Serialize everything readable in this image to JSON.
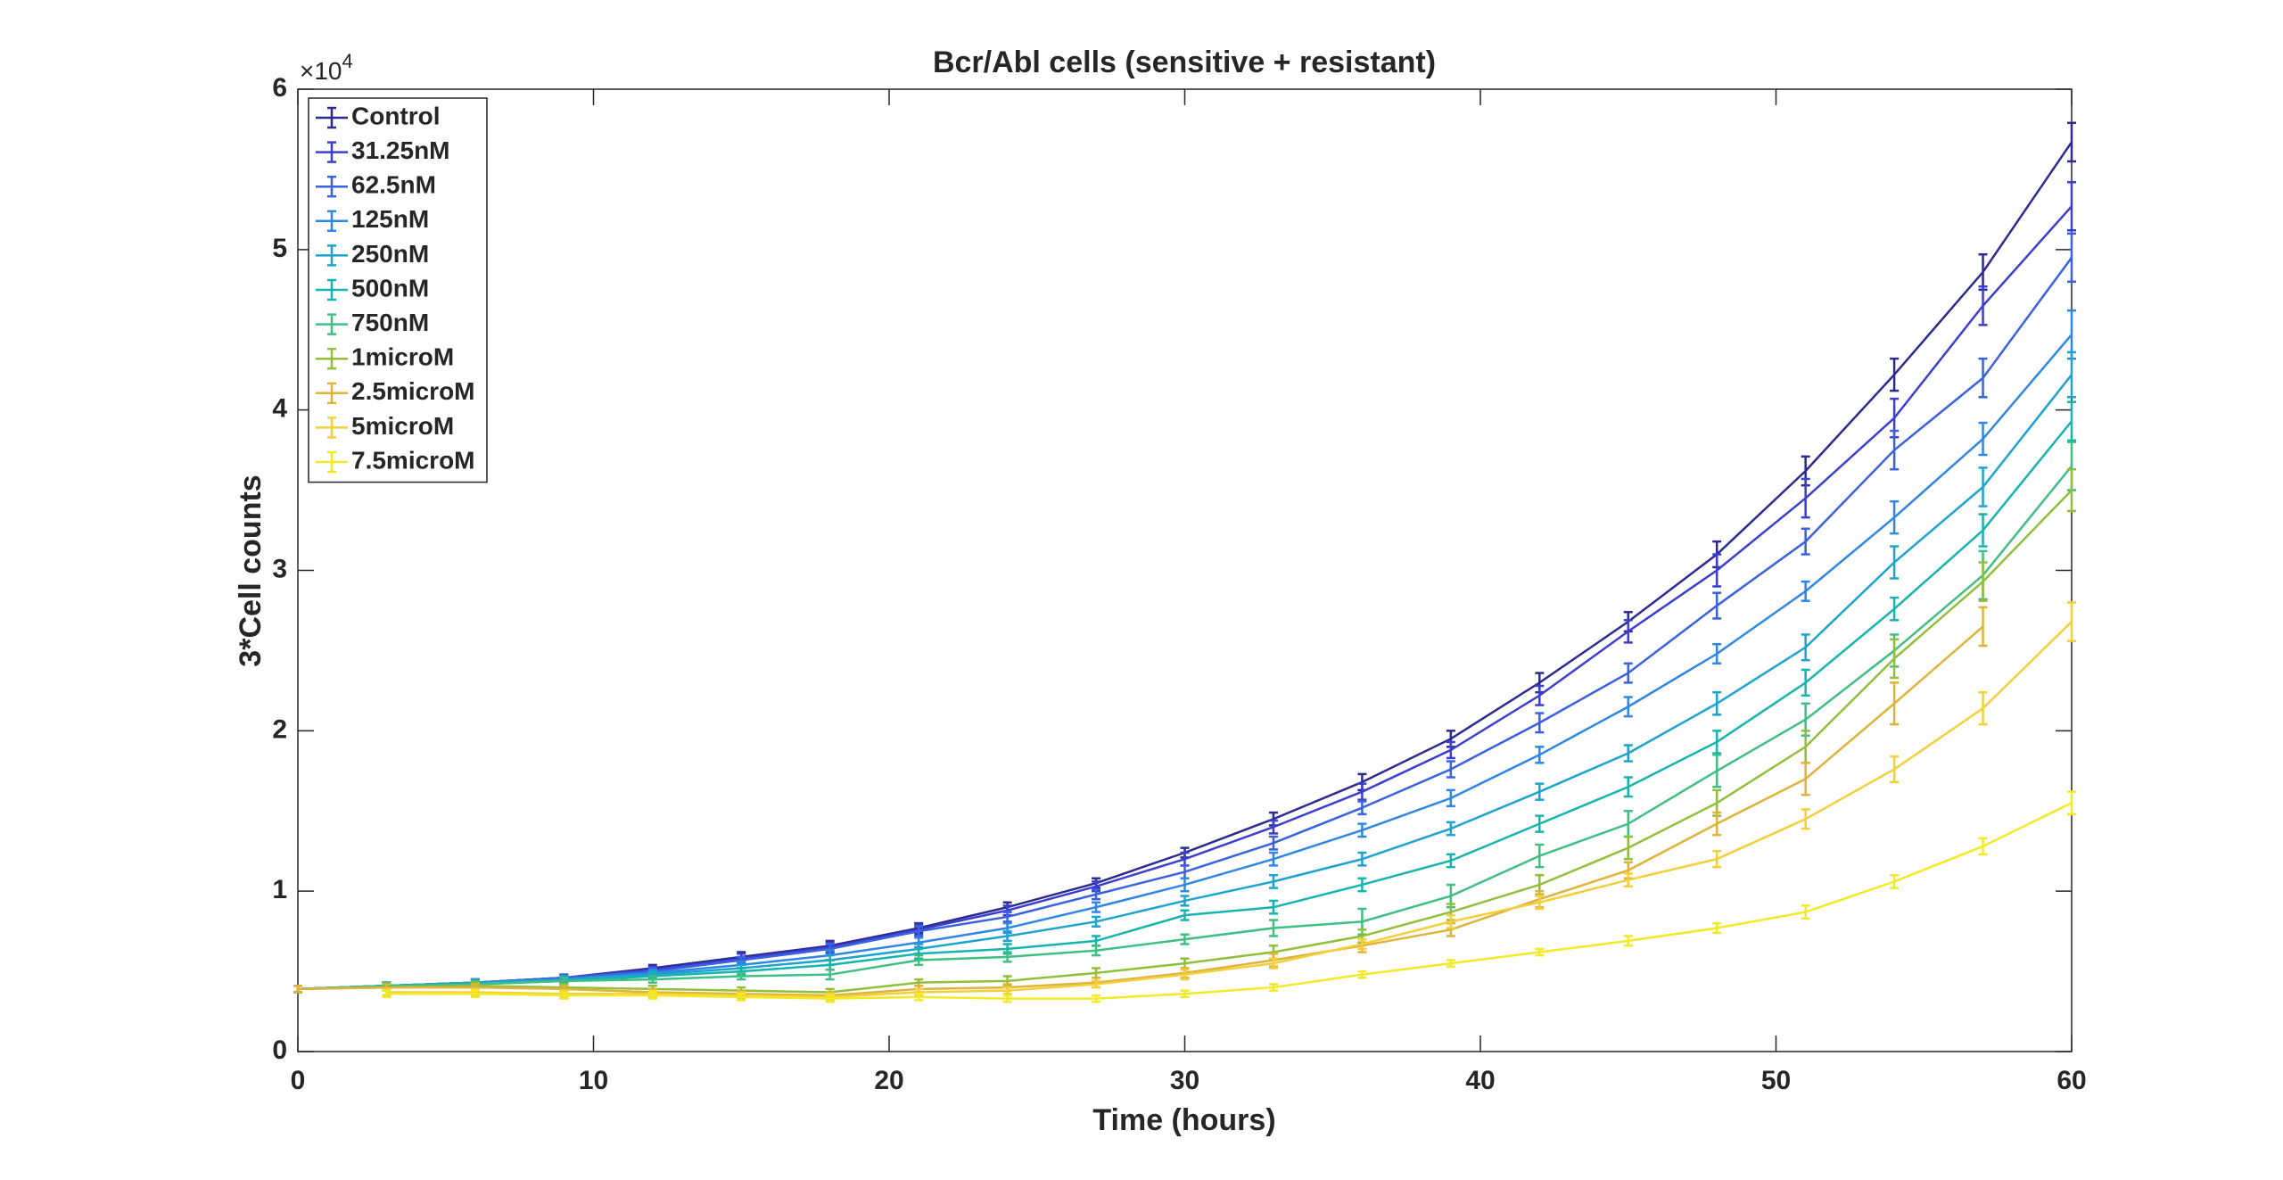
{
  "chart_data": {
    "type": "line",
    "title": "Bcr/Abl cells (sensitive + resistant)",
    "xlabel": "Time (hours)",
    "ylabel": "3*Cell counts",
    "y_multiplier": {
      "base": "×10",
      "exponent": "4"
    },
    "x": [
      0,
      3,
      6,
      9,
      12,
      15,
      18,
      21,
      24,
      27,
      30,
      33,
      36,
      39,
      42,
      45,
      48,
      51,
      54,
      57,
      60
    ],
    "xlim": [
      0,
      60
    ],
    "xticks": [
      0,
      10,
      20,
      30,
      40,
      50,
      60
    ],
    "ylim": [
      0,
      6
    ],
    "yticks": [
      0,
      1,
      2,
      3,
      4,
      5,
      6
    ],
    "grid": false,
    "legend": "upper left",
    "series": [
      {
        "name": "Control",
        "color": "#2d2a8f",
        "values": [
          0.39,
          0.41,
          0.43,
          0.46,
          0.52,
          0.59,
          0.66,
          0.77,
          0.9,
          1.05,
          1.24,
          1.45,
          1.68,
          1.95,
          2.3,
          2.68,
          3.1,
          3.62,
          4.22,
          4.86,
          5.67
        ],
        "errors": [
          0.02,
          0.02,
          0.02,
          0.02,
          0.02,
          0.03,
          0.03,
          0.03,
          0.03,
          0.03,
          0.03,
          0.04,
          0.05,
          0.05,
          0.06,
          0.06,
          0.08,
          0.09,
          0.1,
          0.11,
          0.12
        ]
      },
      {
        "name": "31.25nM",
        "color": "#3b3fd0",
        "values": [
          0.39,
          0.41,
          0.43,
          0.46,
          0.51,
          0.58,
          0.65,
          0.76,
          0.88,
          1.03,
          1.2,
          1.4,
          1.62,
          1.88,
          2.22,
          2.62,
          3.0,
          3.45,
          3.95,
          4.65,
          5.27
        ],
        "errors": [
          0.02,
          0.02,
          0.02,
          0.02,
          0.02,
          0.03,
          0.03,
          0.03,
          0.03,
          0.03,
          0.04,
          0.04,
          0.05,
          0.05,
          0.06,
          0.07,
          0.1,
          0.12,
          0.12,
          0.12,
          0.15
        ]
      },
      {
        "name": "62.5nM",
        "color": "#3a62e0",
        "values": [
          0.39,
          0.41,
          0.43,
          0.46,
          0.5,
          0.57,
          0.64,
          0.75,
          0.84,
          0.98,
          1.12,
          1.3,
          1.52,
          1.76,
          2.05,
          2.36,
          2.78,
          3.18,
          3.75,
          4.2,
          4.95
        ],
        "errors": [
          0.02,
          0.02,
          0.02,
          0.02,
          0.02,
          0.02,
          0.03,
          0.03,
          0.03,
          0.03,
          0.04,
          0.04,
          0.04,
          0.05,
          0.06,
          0.06,
          0.08,
          0.08,
          0.12,
          0.12,
          0.15
        ]
      },
      {
        "name": "125nM",
        "color": "#2f86e4",
        "values": [
          0.39,
          0.41,
          0.43,
          0.45,
          0.49,
          0.54,
          0.6,
          0.68,
          0.77,
          0.9,
          1.04,
          1.2,
          1.38,
          1.58,
          1.85,
          2.15,
          2.48,
          2.87,
          3.33,
          3.82,
          4.47
        ],
        "errors": [
          0.02,
          0.02,
          0.02,
          0.02,
          0.02,
          0.02,
          0.03,
          0.03,
          0.03,
          0.03,
          0.04,
          0.04,
          0.04,
          0.05,
          0.05,
          0.06,
          0.06,
          0.06,
          0.1,
          0.1,
          0.15
        ]
      },
      {
        "name": "250nM",
        "color": "#1ea3d0",
        "values": [
          0.39,
          0.41,
          0.43,
          0.45,
          0.48,
          0.52,
          0.57,
          0.64,
          0.72,
          0.81,
          0.94,
          1.06,
          1.2,
          1.39,
          1.62,
          1.86,
          2.17,
          2.52,
          3.05,
          3.52,
          4.22
        ],
        "errors": [
          0.02,
          0.02,
          0.02,
          0.02,
          0.02,
          0.02,
          0.03,
          0.03,
          0.03,
          0.03,
          0.03,
          0.04,
          0.04,
          0.04,
          0.05,
          0.05,
          0.07,
          0.08,
          0.1,
          0.12,
          0.14
        ]
      },
      {
        "name": "500nM",
        "color": "#15b4b0",
        "values": [
          0.39,
          0.41,
          0.42,
          0.44,
          0.47,
          0.5,
          0.54,
          0.61,
          0.64,
          0.69,
          0.85,
          0.9,
          1.04,
          1.19,
          1.42,
          1.65,
          1.93,
          2.3,
          2.76,
          3.25,
          3.93
        ],
        "errors": [
          0.02,
          0.02,
          0.02,
          0.02,
          0.02,
          0.02,
          0.03,
          0.03,
          0.03,
          0.03,
          0.03,
          0.04,
          0.04,
          0.04,
          0.05,
          0.06,
          0.07,
          0.08,
          0.07,
          0.1,
          0.12
        ]
      },
      {
        "name": "750nM",
        "color": "#3fbf82",
        "values": [
          0.39,
          0.41,
          0.42,
          0.44,
          0.45,
          0.47,
          0.48,
          0.57,
          0.59,
          0.63,
          0.7,
          0.77,
          0.81,
          0.97,
          1.22,
          1.42,
          1.75,
          2.07,
          2.5,
          2.97,
          3.65
        ],
        "errors": [
          0.02,
          0.02,
          0.02,
          0.02,
          0.02,
          0.02,
          0.03,
          0.03,
          0.03,
          0.03,
          0.03,
          0.05,
          0.08,
          0.07,
          0.07,
          0.08,
          0.1,
          0.1,
          0.1,
          0.15,
          0.15
        ]
      },
      {
        "name": "1microM",
        "color": "#92bf3a",
        "values": [
          0.39,
          0.4,
          0.41,
          0.4,
          0.39,
          0.38,
          0.37,
          0.43,
          0.44,
          0.49,
          0.55,
          0.62,
          0.72,
          0.87,
          1.04,
          1.27,
          1.55,
          1.9,
          2.45,
          2.93,
          3.5
        ],
        "errors": [
          0.02,
          0.02,
          0.02,
          0.02,
          0.02,
          0.02,
          0.02,
          0.02,
          0.03,
          0.03,
          0.03,
          0.04,
          0.04,
          0.05,
          0.06,
          0.07,
          0.08,
          0.1,
          0.12,
          0.12,
          0.13
        ]
      },
      {
        "name": "2.5microM",
        "color": "#dfb23a",
        "values": [
          0.39,
          0.4,
          0.4,
          0.39,
          0.37,
          0.36,
          0.35,
          0.39,
          0.4,
          0.43,
          0.49,
          0.57,
          0.66,
          0.76,
          0.95,
          1.13,
          1.42,
          1.7,
          2.17,
          2.65,
          null
        ],
        "errors": [
          0.02,
          0.02,
          0.02,
          0.02,
          0.02,
          0.02,
          0.02,
          0.02,
          0.02,
          0.03,
          0.03,
          0.04,
          0.04,
          0.04,
          0.05,
          0.05,
          0.07,
          0.1,
          0.13,
          0.12,
          null
        ]
      },
      {
        "name": "5microM",
        "color": "#f3cf3a",
        "values": [
          null,
          0.37,
          0.37,
          0.36,
          0.36,
          0.35,
          0.34,
          0.37,
          0.38,
          0.42,
          0.48,
          0.55,
          0.67,
          0.81,
          0.93,
          1.07,
          1.2,
          1.45,
          1.76,
          2.14,
          2.68
        ],
        "errors": [
          null,
          0.02,
          0.02,
          0.02,
          0.02,
          0.02,
          0.02,
          0.02,
          0.02,
          0.02,
          0.03,
          0.03,
          0.03,
          0.04,
          0.04,
          0.04,
          0.05,
          0.06,
          0.08,
          0.1,
          0.12
        ]
      },
      {
        "name": "7.5microM",
        "color": "#f2ea26",
        "values": [
          null,
          0.36,
          0.36,
          0.35,
          0.35,
          0.34,
          0.33,
          0.34,
          0.33,
          0.33,
          0.36,
          0.4,
          0.48,
          0.55,
          0.62,
          0.69,
          0.77,
          0.87,
          1.06,
          1.28,
          1.55
        ],
        "errors": [
          null,
          0.02,
          0.02,
          0.02,
          0.02,
          0.02,
          0.02,
          0.02,
          0.02,
          0.02,
          0.02,
          0.02,
          0.02,
          0.02,
          0.02,
          0.03,
          0.03,
          0.04,
          0.04,
          0.05,
          0.07
        ]
      }
    ]
  }
}
